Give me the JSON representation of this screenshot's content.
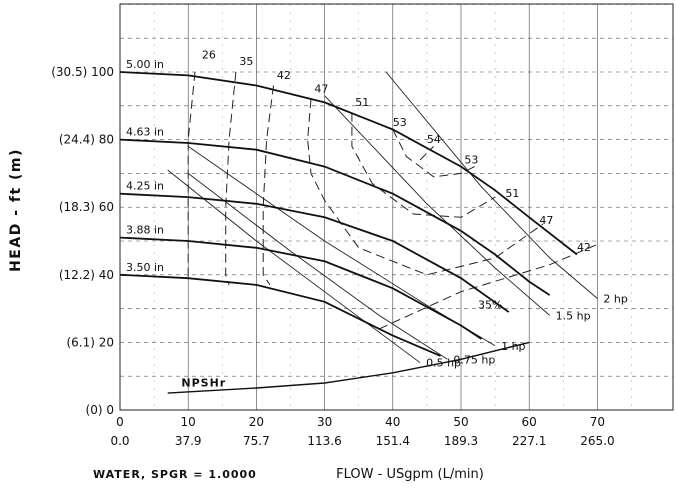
{
  "chart_data": {
    "type": "line",
    "xlabel": "FLOW - USgpm (L/min)",
    "ylabel": "HEAD - ft (m)",
    "footnote": "WATER, SPGR = 1.0000",
    "xlim": [
      0,
      80
    ],
    "ylim": [
      0,
      125
    ],
    "x_ticks": [
      0,
      10,
      20,
      30,
      40,
      50,
      60,
      70
    ],
    "x_tick_labels": [
      "0",
      "10",
      "20",
      "30",
      "40",
      "50",
      "60",
      "70"
    ],
    "x_tick_labels_metric": [
      "0.0",
      "37.9",
      "75.7",
      "113.6",
      "151.4",
      "189.3",
      "227.1",
      "265.0"
    ],
    "y_ticks": [
      0,
      20,
      40,
      60,
      80,
      100
    ],
    "y_tick_labels": [
      "(0) 0",
      "(6.1) 20",
      "(12.2) 40",
      "(18.3) 60",
      "(24.4) 80",
      "(30.5) 100"
    ],
    "grid": true,
    "impeller_curves": [
      {
        "name": "5.00 in",
        "points": [
          [
            0,
            100
          ],
          [
            10,
            99
          ],
          [
            20,
            96
          ],
          [
            30,
            91
          ],
          [
            40,
            83
          ],
          [
            50,
            72
          ],
          [
            55,
            65
          ],
          [
            60,
            57
          ],
          [
            67,
            46
          ]
        ]
      },
      {
        "name": "4.63 in",
        "points": [
          [
            0,
            80
          ],
          [
            10,
            79
          ],
          [
            20,
            77
          ],
          [
            30,
            72
          ],
          [
            40,
            64
          ],
          [
            50,
            53
          ],
          [
            55,
            46
          ],
          [
            60,
            38
          ],
          [
            63,
            34
          ]
        ]
      },
      {
        "name": "4.25 in",
        "points": [
          [
            0,
            64
          ],
          [
            10,
            63
          ],
          [
            20,
            61
          ],
          [
            30,
            57
          ],
          [
            40,
            50
          ],
          [
            50,
            39
          ],
          [
            57,
            29
          ]
        ]
      },
      {
        "name": "3.88 in",
        "points": [
          [
            0,
            51
          ],
          [
            10,
            50
          ],
          [
            20,
            48
          ],
          [
            30,
            44
          ],
          [
            40,
            36
          ],
          [
            50,
            25
          ],
          [
            53,
            21
          ]
        ]
      },
      {
        "name": "3.50 in",
        "points": [
          [
            0,
            40
          ],
          [
            10,
            39
          ],
          [
            20,
            37
          ],
          [
            30,
            32
          ],
          [
            40,
            22
          ],
          [
            47,
            16
          ]
        ]
      }
    ],
    "power_lines": [
      {
        "name": "2 hp",
        "points": [
          [
            39,
            100
          ],
          [
            53,
            66
          ],
          [
            63,
            45
          ],
          [
            70,
            33
          ]
        ]
      },
      {
        "name": "1.5 hp",
        "points": [
          [
            30,
            93
          ],
          [
            45,
            61
          ],
          [
            55,
            42
          ],
          [
            63,
            28
          ]
        ]
      },
      {
        "name": "1 hp",
        "points": [
          [
            10,
            78
          ],
          [
            30,
            50
          ],
          [
            45,
            31
          ],
          [
            55,
            19
          ]
        ]
      },
      {
        "name": "0.75 hp",
        "points": [
          [
            10,
            70
          ],
          [
            25,
            47
          ],
          [
            38,
            28
          ],
          [
            48,
            15
          ]
        ]
      },
      {
        "name": "0.5 hp",
        "points": [
          [
            7,
            71
          ],
          [
            20,
            50
          ],
          [
            32,
            32
          ],
          [
            44,
            14
          ]
        ]
      }
    ],
    "efficiency_contours": [
      {
        "name": "26",
        "points": [
          [
            11,
            100
          ],
          [
            10,
            80
          ],
          [
            10,
            60
          ],
          [
            10,
            40
          ],
          [
            10,
            38
          ]
        ]
      },
      {
        "name": "35",
        "points": [
          [
            17,
            100
          ],
          [
            16,
            80
          ],
          [
            15.5,
            60
          ],
          [
            15.5,
            40
          ],
          [
            16,
            37
          ]
        ]
      },
      {
        "name": "42",
        "points": [
          [
            22.5,
            96
          ],
          [
            21.5,
            80
          ],
          [
            21,
            60
          ],
          [
            21,
            40
          ],
          [
            22,
            37
          ]
        ]
      },
      {
        "name": "47",
        "points": [
          [
            28,
            92
          ],
          [
            27.5,
            80
          ],
          [
            28,
            70
          ],
          [
            30,
            62
          ],
          [
            35,
            48
          ],
          [
            45,
            40
          ],
          [
            55,
            45
          ],
          [
            62,
            55
          ]
        ]
      },
      {
        "name": "51",
        "points": [
          [
            34,
            88
          ],
          [
            34,
            78
          ],
          [
            37,
            67
          ],
          [
            43,
            58
          ],
          [
            50,
            57
          ],
          [
            55,
            63
          ]
        ]
      },
      {
        "name": "53",
        "points": [
          [
            40,
            83
          ],
          [
            42,
            75
          ],
          [
            46,
            69
          ],
          [
            50,
            70
          ],
          [
            52,
            72
          ]
        ]
      },
      {
        "name": "54",
        "points": [
          [
            44,
            74
          ],
          [
            46,
            78
          ]
        ]
      },
      {
        "name": "35%",
        "points": [
          [
            38,
            24
          ],
          [
            50,
            35
          ],
          [
            63,
            43
          ],
          [
            70,
            49
          ]
        ]
      }
    ],
    "npshr": {
      "name": "NPSHr",
      "points": [
        [
          7,
          5
        ],
        [
          20,
          6.5
        ],
        [
          30,
          8
        ],
        [
          40,
          11
        ],
        [
          50,
          15
        ],
        [
          60,
          20
        ]
      ]
    },
    "annotations": [
      "26",
      "35",
      "42",
      "47",
      "51",
      "53",
      "54",
      "53",
      "51",
      "47",
      "42",
      "35%"
    ]
  }
}
